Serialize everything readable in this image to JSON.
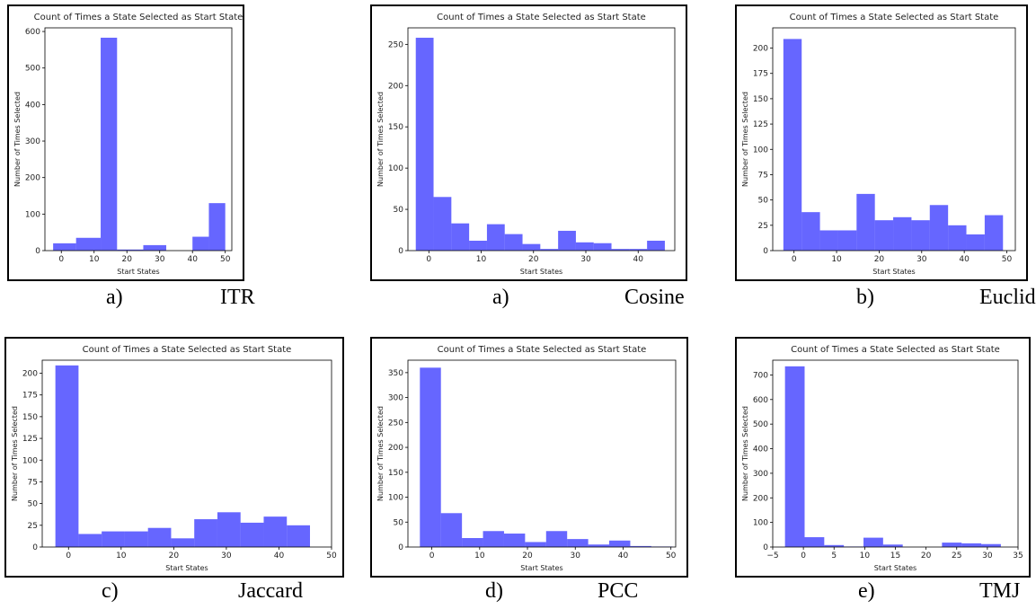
{
  "chart_data": [
    {
      "type": "histogram",
      "title": "Count of Times a State Selected as Start State",
      "xlabel": "Start States",
      "ylabel": "Number of Times Selected",
      "panel_label": "a)",
      "caption": "ITR",
      "bins": [
        -2.5,
        4.5,
        12,
        17,
        25,
        32,
        40,
        45,
        50
      ],
      "counts": [
        20,
        35,
        583,
        3,
        15,
        0,
        38,
        130
      ],
      "color": "#0000ff",
      "xlim": [
        -5,
        52
      ],
      "xticks": [
        0,
        10,
        20,
        30,
        40,
        50
      ],
      "ylim": [
        0,
        610
      ],
      "yticks": [
        0,
        100,
        200,
        300,
        400,
        500,
        600
      ]
    },
    {
      "type": "histogram",
      "title": "Count of Times a State Selected as Start State",
      "xlabel": "Start States",
      "ylabel": "Number of Times Selected",
      "panel_label": "a)",
      "caption": "Cosine",
      "bins": [
        -2.5,
        0.9,
        4.3,
        7.7,
        11.1,
        14.5,
        17.9,
        21.3,
        24.7,
        28.1,
        31.5,
        34.9,
        38.3,
        41.7,
        45.1
      ],
      "counts": [
        258,
        65,
        33,
        12,
        32,
        20,
        8,
        2,
        24,
        10,
        9,
        2,
        2,
        12
      ],
      "color": "#0000ff",
      "xlim": [
        -4,
        47
      ],
      "xticks": [
        0,
        10,
        20,
        30,
        40
      ],
      "ylim": [
        0,
        270
      ],
      "yticks": [
        0,
        50,
        100,
        150,
        200,
        250
      ]
    },
    {
      "type": "histogram",
      "title": "Count of Times a State Selected as Start State",
      "xlabel": "Start States",
      "ylabel": "Number of Times Selected",
      "panel_label": "b)",
      "caption": "Euclidian",
      "bins": [
        -2.5,
        1.8,
        6.1,
        10.4,
        14.7,
        19,
        23.3,
        27.6,
        31.9,
        36.2,
        40.5,
        44.8,
        49.1
      ],
      "counts": [
        209,
        38,
        20,
        20,
        56,
        30,
        33,
        30,
        45,
        25,
        16,
        35
      ],
      "color": "#0000ff",
      "xlim": [
        -5,
        52
      ],
      "xticks": [
        0,
        10,
        20,
        30,
        40,
        50
      ],
      "ylim": [
        0,
        220
      ],
      "yticks": [
        0,
        25,
        50,
        75,
        100,
        125,
        150,
        175,
        200
      ]
    },
    {
      "type": "histogram",
      "title": "Count of Times a State Selected as Start State",
      "xlabel": "Start States",
      "ylabel": "Number of Times Selected",
      "panel_label": "c)",
      "caption": "Jaccard",
      "bins": [
        -2.5,
        1.9,
        6.3,
        10.7,
        15.1,
        19.5,
        23.9,
        28.3,
        32.7,
        37.1,
        41.5,
        45.9
      ],
      "counts": [
        209,
        15,
        18,
        18,
        22,
        10,
        32,
        40,
        28,
        35,
        25
      ],
      "color": "#0000ff",
      "xlim": [
        -5,
        50
      ],
      "xticks": [
        0,
        10,
        20,
        30,
        40,
        50
      ],
      "ylim": [
        0,
        215
      ],
      "yticks": [
        0,
        25,
        50,
        75,
        100,
        125,
        150,
        175,
        200
      ]
    },
    {
      "type": "histogram",
      "title": "Count of Times a State Selected as Start State",
      "xlabel": "Start States",
      "ylabel": "Number of Times Selected",
      "panel_label": "d)",
      "caption": "PCC",
      "bins": [
        -2.5,
        1.9,
        6.3,
        10.7,
        15.1,
        19.5,
        23.9,
        28.3,
        32.7,
        37.1,
        41.5,
        45.9,
        50.3
      ],
      "counts": [
        360,
        68,
        18,
        32,
        27,
        10,
        32,
        16,
        5,
        13,
        2,
        1
      ],
      "color": "#0000ff",
      "xlim": [
        -5,
        51
      ],
      "xticks": [
        0,
        10,
        20,
        30,
        40,
        50
      ],
      "ylim": [
        0,
        375
      ],
      "yticks": [
        0,
        50,
        100,
        150,
        200,
        250,
        300,
        350
      ]
    },
    {
      "type": "histogram",
      "title": "Count of Times a State Selected as Start State",
      "xlabel": "Start States",
      "ylabel": "Number of Times Selected",
      "panel_label": "e)",
      "caption": "TMJ",
      "bins": [
        -3,
        0.2,
        3.4,
        6.6,
        9.8,
        13,
        16.2,
        19.4,
        22.6,
        25.8,
        29,
        32.2
      ],
      "counts": [
        735,
        40,
        8,
        2,
        38,
        10,
        0,
        0,
        18,
        15,
        12
      ],
      "color": "#0000ff",
      "xlim": [
        -5,
        35
      ],
      "xticks": [
        {
          "value": -5,
          "label": "−5"
        },
        0,
        5,
        10,
        15,
        20,
        25,
        30,
        35
      ],
      "ylim": [
        0,
        760
      ],
      "yticks": [
        0,
        100,
        200,
        300,
        400,
        500,
        600,
        700
      ]
    }
  ]
}
